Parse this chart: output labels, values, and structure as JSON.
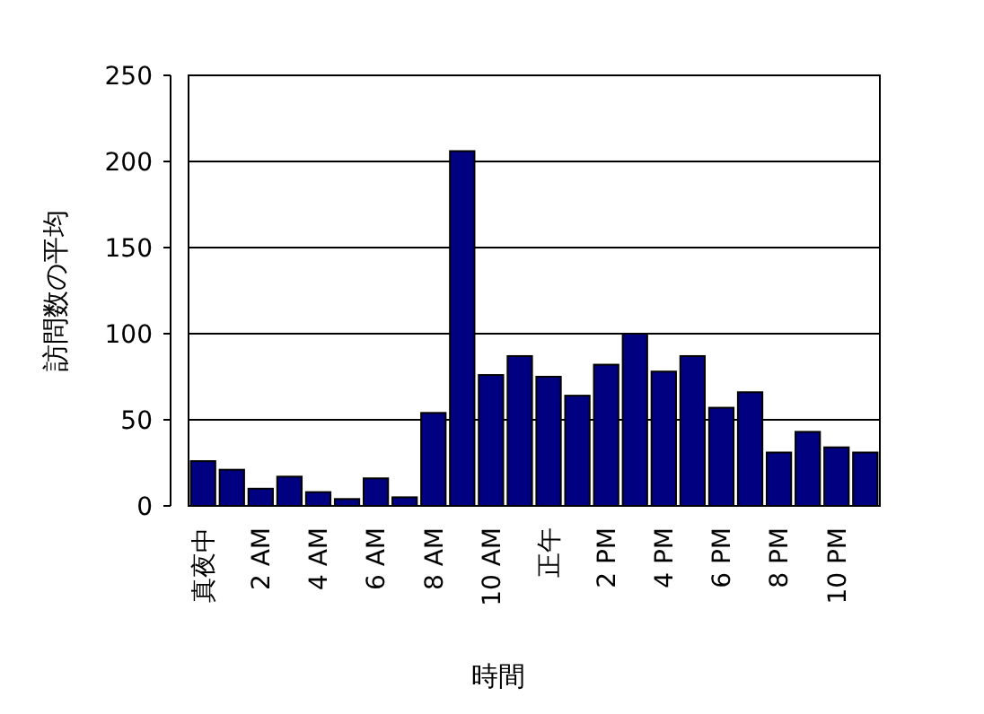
{
  "chart_data": {
    "type": "bar",
    "xlabel": "時間",
    "ylabel": "訪問数の平均",
    "categories": [
      "真夜中",
      null,
      "2 AM",
      null,
      "4 AM",
      null,
      "6 AM",
      null,
      "8 AM",
      null,
      "10 AM",
      null,
      "正午",
      null,
      "2 PM",
      null,
      "4 PM",
      null,
      "6 PM",
      null,
      "8 PM",
      null,
      "10 PM",
      null
    ],
    "values": [
      26,
      21,
      10,
      17,
      8,
      4,
      16,
      5,
      54,
      206,
      76,
      87,
      75,
      64,
      82,
      100,
      78,
      87,
      57,
      66,
      31,
      43,
      34,
      31
    ],
    "color": "#000080",
    "ylim": [
      0,
      250
    ],
    "yticks": [
      0,
      50,
      100,
      150,
      200,
      250
    ],
    "grid": true
  }
}
